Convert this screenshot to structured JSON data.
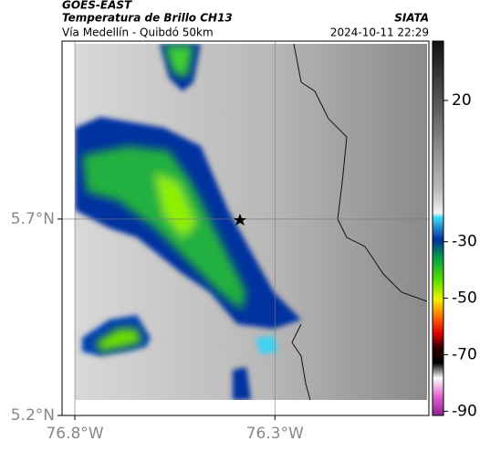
{
  "header": {
    "product": "GOES-EAST",
    "title": "Temperatura de Brillo CH13",
    "location": "Vía Medellín - Quibdó 50km",
    "source": "SIATA",
    "timestamp": "2024-10-11 22:29"
  },
  "map": {
    "xlim": [
      -76.832,
      -75.915
    ],
    "ylim": [
      5.2,
      6.153
    ],
    "xticks": [
      {
        "value": -76.8,
        "label": "76.8°W"
      },
      {
        "value": -76.3,
        "label": "76.3°W"
      }
    ],
    "yticks": [
      {
        "value": 5.2,
        "label": "5.2°N"
      },
      {
        "value": 5.7,
        "label": "5.7°N"
      }
    ],
    "grid": true
  },
  "colorbar": {
    "lim": [
      -91.5,
      41
    ],
    "ticks": [
      20,
      -30,
      -50,
      -70,
      -90
    ]
  }
}
